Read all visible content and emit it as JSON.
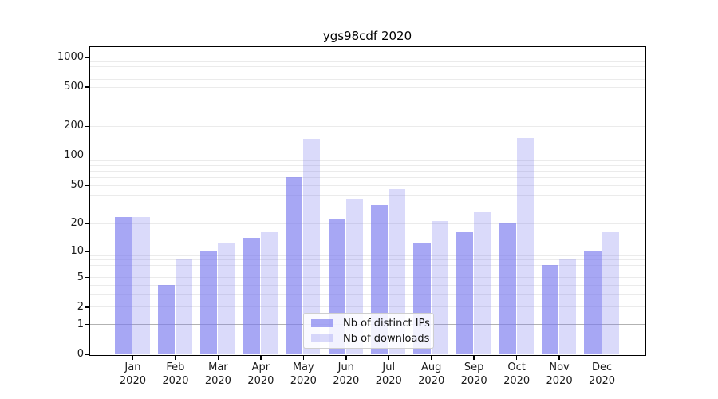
{
  "title": "ygs98cdf 2020",
  "colors": {
    "bar_base": "#7a7aee",
    "ips_fill": "rgba(122,122,238,0.66)",
    "downloads_fill": "rgba(122,122,238,0.28)",
    "grid_major": "rgba(0,0,0,0.30)",
    "grid_minor": "rgba(0,0,0,0.08)",
    "axis": "#000000",
    "text": "#1a1a1a",
    "legend_border": "#cfcfcf"
  },
  "chart_data": {
    "type": "bar",
    "title": "ygs98cdf 2020",
    "categories": [
      "Jan",
      "Feb",
      "Mar",
      "Apr",
      "May",
      "Jun",
      "Jul",
      "Aug",
      "Sep",
      "Oct",
      "Nov",
      "Dec"
    ],
    "x_tick_second_line": "2020",
    "series": [
      {
        "name": "Nb of distinct IPs",
        "values": [
          23,
          4,
          10,
          14,
          60,
          22,
          31,
          12,
          16,
          20,
          7,
          10
        ]
      },
      {
        "name": "Nb of downloads",
        "values": [
          23,
          8,
          12,
          16,
          147,
          36,
          45,
          21,
          26,
          150,
          8,
          16
        ]
      }
    ],
    "xlabel": "",
    "ylabel": "",
    "y_scale": "log1p",
    "ylim": [
      0,
      1280
    ],
    "y_tick_labels": [
      0,
      1,
      2,
      5,
      10,
      20,
      50,
      100,
      200,
      500,
      1000
    ],
    "y_grid_major": [
      1,
      10,
      100,
      1000
    ],
    "y_grid_minor": [
      2,
      3,
      4,
      5,
      6,
      7,
      8,
      9,
      20,
      30,
      40,
      50,
      60,
      70,
      80,
      90,
      200,
      300,
      400,
      500,
      600,
      700,
      800,
      900
    ],
    "grid": true,
    "legend_position": "lower center"
  }
}
